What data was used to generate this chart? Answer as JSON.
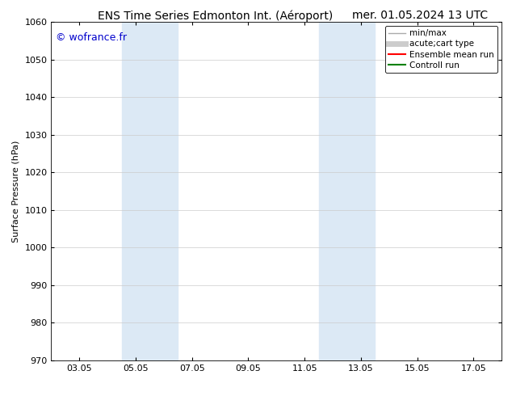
{
  "title_left": "ENS Time Series Edmonton Int. (Aéroport)",
  "title_right": "mer. 01.05.2024 13 UTC",
  "ylabel": "Surface Pressure (hPa)",
  "ylim": [
    970,
    1060
  ],
  "yticks": [
    970,
    980,
    990,
    1000,
    1010,
    1020,
    1030,
    1040,
    1050,
    1060
  ],
  "xtick_labels": [
    "03.05",
    "05.05",
    "07.05",
    "09.05",
    "11.05",
    "13.05",
    "15.05",
    "17.05"
  ],
  "xtick_values": [
    2,
    4,
    6,
    8,
    10,
    12,
    14,
    16
  ],
  "xlim": [
    1,
    17
  ],
  "shaded_regions": [
    {
      "xmin": 3.5,
      "xmax": 5.5,
      "color": "#dce9f5"
    },
    {
      "xmin": 10.5,
      "xmax": 12.5,
      "color": "#dce9f5"
    }
  ],
  "watermark": "© wofrance.fr",
  "watermark_color": "#0000cc",
  "background_color": "#ffffff",
  "legend_entries": [
    {
      "label": "min/max",
      "color": "#aaaaaa",
      "lw": 1.0,
      "linestyle": "solid"
    },
    {
      "label": "acute;cart type",
      "color": "#cccccc",
      "lw": 5,
      "linestyle": "solid"
    },
    {
      "label": "Ensemble mean run",
      "color": "#ff0000",
      "lw": 1.5,
      "linestyle": "solid"
    },
    {
      "label": "Controll run",
      "color": "#008000",
      "lw": 1.5,
      "linestyle": "solid"
    }
  ],
  "grid_color": "#cccccc",
  "title_fontsize": 10,
  "axis_label_fontsize": 8,
  "tick_fontsize": 8,
  "watermark_fontsize": 9,
  "legend_fontsize": 7.5
}
